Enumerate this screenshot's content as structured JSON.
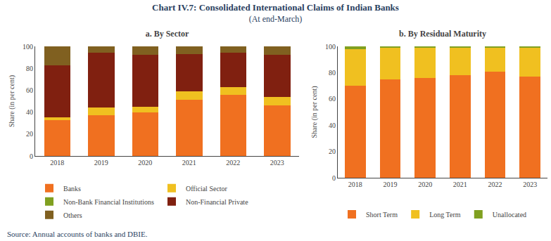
{
  "title": "Chart IV.7: Consolidated International Claims of Indian Banks",
  "subtitle": "(At end-March)",
  "source": "Source: Annual accounts of banks and DBIE.",
  "chart_data": [
    {
      "type": "bar",
      "stacked": true,
      "title": "a. By Sector",
      "ylabel": "Share (in per cent)",
      "categories": [
        "2018",
        "2019",
        "2020",
        "2021",
        "2022",
        "2023"
      ],
      "series": [
        {
          "name": "Banks",
          "color": "#F07020",
          "values": [
            33,
            37,
            40,
            51,
            56,
            46
          ]
        },
        {
          "name": "Official Sector",
          "color": "#F0C020",
          "values": [
            2,
            7,
            5,
            8,
            7,
            8
          ]
        },
        {
          "name": "Non-Bank Financial Institutions",
          "color": "#80A020",
          "values": [
            0,
            0,
            0,
            0,
            0,
            0
          ]
        },
        {
          "name": "Non-Financial Private",
          "color": "#802010",
          "values": [
            48,
            50,
            47,
            34,
            31,
            38
          ]
        },
        {
          "name": "Others",
          "color": "#806020",
          "values": [
            17,
            6,
            8,
            7,
            6,
            8
          ]
        }
      ],
      "ylim": [
        0,
        100
      ],
      "yticks": [
        0,
        20,
        40,
        60,
        80,
        100
      ],
      "grid": false,
      "legend": "bottom"
    },
    {
      "type": "bar",
      "stacked": true,
      "title": "b. By Residual Maturity",
      "ylabel": "Share (in per cent)",
      "categories": [
        "2018",
        "2019",
        "2020",
        "2021",
        "2022",
        "2023"
      ],
      "series": [
        {
          "name": "Short Term",
          "color": "#F07020",
          "values": [
            70,
            75,
            76,
            78,
            81,
            77
          ]
        },
        {
          "name": "Long Term",
          "color": "#F0C020",
          "values": [
            28,
            24,
            23,
            21,
            18,
            22
          ]
        },
        {
          "name": "Unallocated",
          "color": "#80A020",
          "values": [
            2,
            1,
            1,
            1,
            1,
            1
          ]
        }
      ],
      "ylim": [
        0,
        100
      ],
      "yticks": [
        0,
        20,
        40,
        60,
        80,
        100
      ],
      "grid": false,
      "legend": "bottom"
    }
  ]
}
